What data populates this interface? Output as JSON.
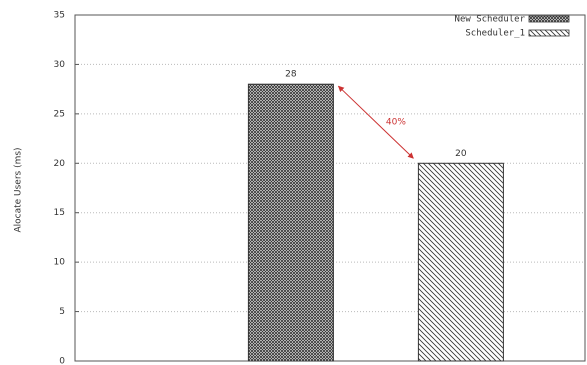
{
  "chart_data": {
    "type": "bar",
    "y_label": "Alocate Users (ms)",
    "categories": [
      null
    ],
    "series": [
      {
        "name": "New Scheduler",
        "color": "#333333",
        "pattern": "crosshatch",
        "values": [
          28
        ]
      },
      {
        "name": "Scheduler_1",
        "color": "#333333",
        "pattern": "diagonal",
        "values": [
          20
        ]
      }
    ],
    "ylim": [
      0,
      35
    ],
    "yticks": [
      0,
      5,
      10,
      15,
      20,
      25,
      30,
      35
    ],
    "grid": true,
    "legend": "upper right",
    "annotation": {
      "text": "40%",
      "color": "#cc3333"
    }
  }
}
